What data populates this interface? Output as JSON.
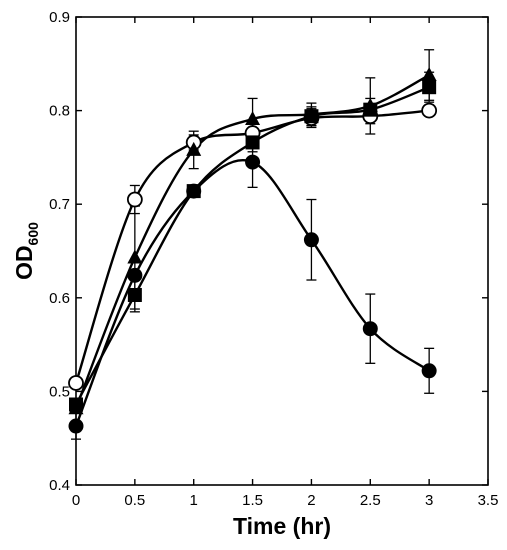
{
  "chart_data": {
    "type": "line",
    "title": "",
    "xlabel": "Time (hr)",
    "ylabel_main": "OD",
    "ylabel_sub": "600",
    "xlim": [
      0,
      3.5
    ],
    "ylim": [
      0.4,
      0.9
    ],
    "xticks": [
      "0",
      "0.5",
      "1",
      "1.5",
      "2",
      "2.5",
      "3",
      "3.5"
    ],
    "yticks": [
      "0.4",
      "0.5",
      "0.6",
      "0.7",
      "0.8",
      "0.9"
    ],
    "grid": false,
    "legend": "none",
    "x": [
      0,
      0.5,
      1,
      1.5,
      2,
      2.5,
      3
    ],
    "series": [
      {
        "marker": "open-circle",
        "values": [
          0.509,
          0.705,
          0.766,
          0.776,
          0.792,
          0.794,
          0.8
        ],
        "errors": [
          0.0,
          0.015,
          0.008,
          0.01,
          0.01,
          0.008,
          0.004
        ]
      },
      {
        "marker": "filled-triangle",
        "values": [
          0.482,
          0.643,
          0.758,
          0.791,
          0.796,
          0.805,
          0.838
        ],
        "errors": [
          0.0,
          0.055,
          0.02,
          0.022,
          0.012,
          0.03,
          0.027
        ]
      },
      {
        "marker": "filled-square",
        "values": [
          0.486,
          0.603,
          0.714,
          0.766,
          0.794,
          0.801,
          0.825
        ],
        "errors": [
          0.0,
          0.018,
          0.0,
          0.01,
          0.01,
          0.012,
          0.016
        ]
      },
      {
        "marker": "filled-circle",
        "values": [
          0.463,
          0.624,
          0.714,
          0.745,
          0.662,
          0.567,
          0.522
        ],
        "errors": [
          0.014,
          0.0,
          0.0,
          0.027,
          0.043,
          0.037,
          0.024
        ]
      }
    ]
  }
}
